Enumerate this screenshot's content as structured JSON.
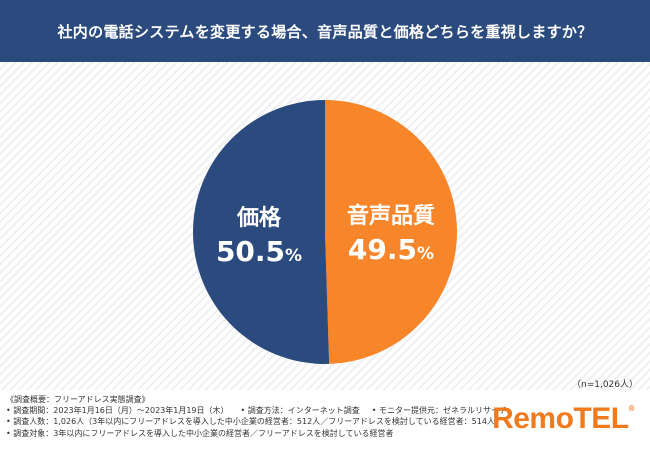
{
  "title": "社内の電話システムを変更する場合、音声品質と価格どちらを重視しますか？",
  "n_note": "（n=1,026人）",
  "survey": {
    "heading": "《調査概要：フリーアドレス実態調査》",
    "period": "• 調査期間：2023年1月16日（月）〜2023年1月19日（木）",
    "method": "• 調査方法：インターネット調査",
    "provider": "• モニター提供元：ゼネラルリサーチ",
    "respondents": "• 調査人数：1,026人（3年以内にフリーアドレスを導入した中小企業の経営者：512人／フリーアドレスを検討している経営者：514人）",
    "target": "• 調査対象：3年以内にフリーアドレスを導入した中小企業の経営者／フリーアドレスを検討している経営者"
  },
  "logo": {
    "text": "RemoTEL",
    "mark": "®"
  },
  "colors": {
    "header": "#2b4a7e",
    "price": "#2b4a7e",
    "audio": "#f7862a",
    "logo": "#f07a1e"
  },
  "chart_data": {
    "type": "pie",
    "title": "社内の電話システムを変更する場合、音声品質と価格どちらを重視しますか？",
    "slices": [
      {
        "label": "音声品質",
        "value": 49.5,
        "display_value": "49.5",
        "unit": "%",
        "color": "#f7862a"
      },
      {
        "label": "価格",
        "value": 50.5,
        "display_value": "50.5",
        "unit": "%",
        "color": "#2b4a7e"
      }
    ]
  }
}
